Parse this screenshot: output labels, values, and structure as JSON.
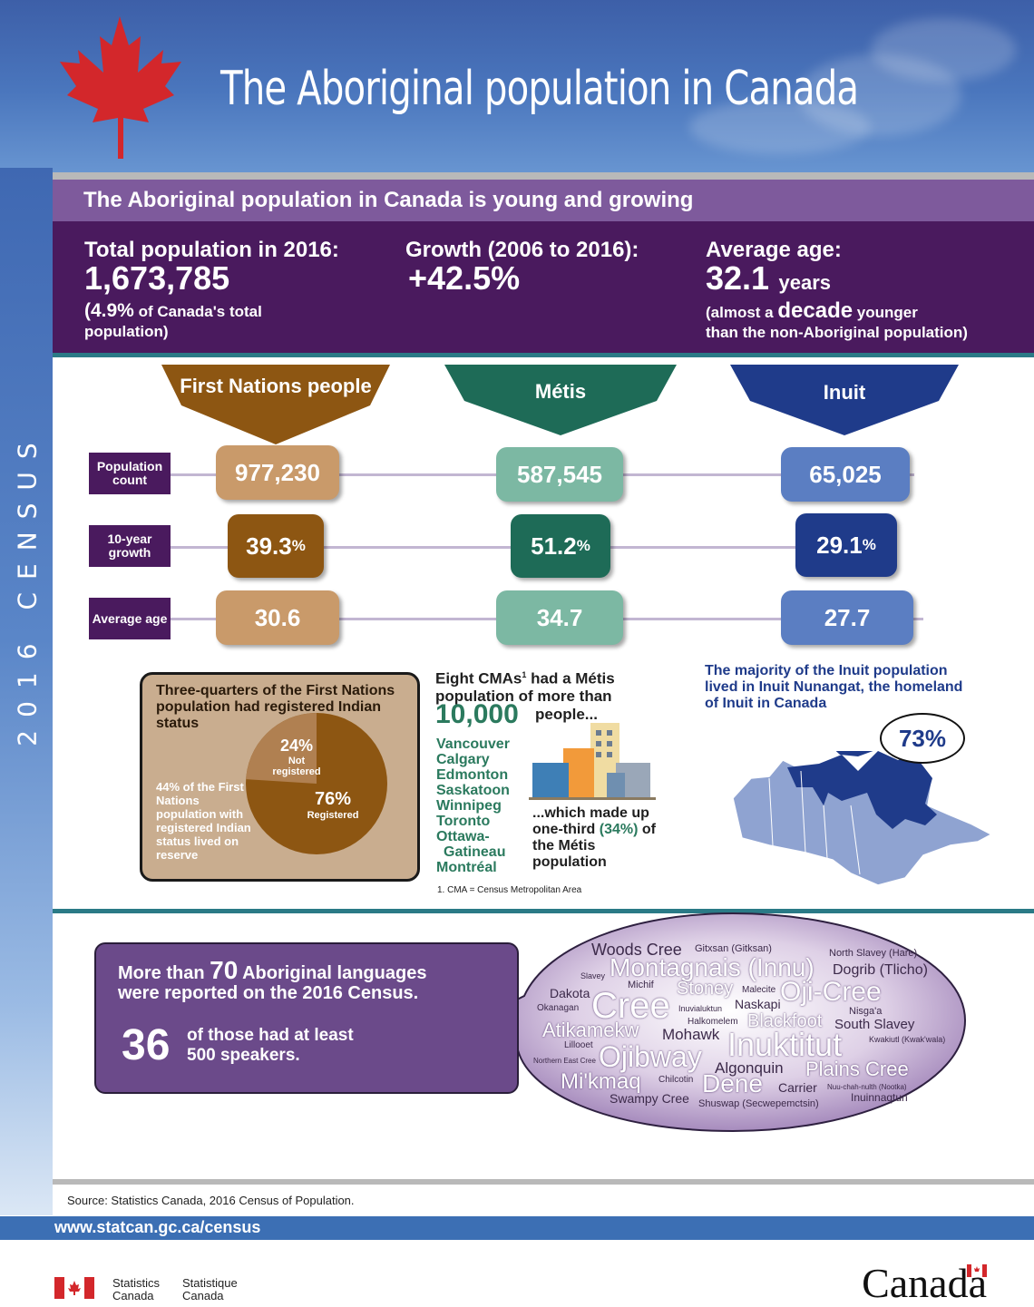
{
  "header": {
    "title": "The Aboriginal population in Canada",
    "side_label": "2016 CENSUS"
  },
  "intro": {
    "heading": "The Aboriginal population in Canada is young and growing",
    "total_label": "Total population in 2016:",
    "total_value": "1,673,785",
    "total_pct": "(4.9%",
    "total_pct_note": " of Canada's total",
    "total_pct_note2": "population)",
    "growth_label": "Growth (2006 to 2016):",
    "growth_value": "+42.5%",
    "age_label": "Average age:",
    "age_value": "32.1",
    "age_unit": "years",
    "age_note_a": "(almost a ",
    "age_note_b": "decade",
    "age_note_c": " younger",
    "age_note_d": "than the non-Aboriginal population)"
  },
  "groups": [
    {
      "name": "First Nations people",
      "color": "#8d5612",
      "population": "977,230",
      "growth": "39.3",
      "age": "30.6"
    },
    {
      "name": "Métis",
      "color": "#1e6b57",
      "population": "587,545",
      "growth": "51.2",
      "age": "34.7"
    },
    {
      "name": "Inuit",
      "color": "#1f3b8a",
      "population": "65,025",
      "growth": "29.1",
      "age": "27.7"
    }
  ],
  "row_labels": {
    "population": "Population count",
    "growth": "10-year growth",
    "age": "Average age",
    "pct": "%"
  },
  "first_nations_detail": {
    "heading": "Three-quarters of the First Nations population had registered Indian status",
    "note": "44% of the First Nations population with registered Indian status lived on reserve",
    "pie_not_pct": "24%",
    "pie_not_label": "Not registered",
    "pie_reg_pct": "76%",
    "pie_reg_label": "Registered",
    "pie_values": [
      24,
      76
    ]
  },
  "metis_detail": {
    "heading_a": "Eight CMAs",
    "footnote_mark": "1",
    "heading_b": " had a Métis population of more than",
    "big": "10,000",
    "big_suffix": "people...",
    "cities": [
      "Vancouver",
      "Calgary",
      "Edmonton",
      "Saskatoon",
      "Winnipeg",
      "Toronto",
      "Ottawa-",
      "Gatineau",
      "Montréal"
    ],
    "share_a": "...which made up one-third ",
    "share_b": "(34%)",
    "share_c": " of the Métis population",
    "footnote": "1. CMA = Census Metropolitan Area"
  },
  "inuit_detail": {
    "text": "The majority of the Inuit population lived in Inuit Nunangat, the homeland of Inuit in Canada",
    "pct": "73%"
  },
  "languages": {
    "line1_a": "More than ",
    "line1_b": "70",
    "line1_c": " Aboriginal languages",
    "line2": "were reported on the 2016 Census.",
    "count": "36",
    "count_text_1": "of those had at least",
    "count_text_2": "500 speakers.",
    "cloud": [
      "Woods Cree",
      "Gitxsan (Gitksan)",
      "North Slavey (Hare)",
      "Montagnais (Innu)",
      "Dogrib (Tlicho)",
      "Slavey",
      "Michif",
      "Stoney",
      "Malecite",
      "Dakota",
      "Oji-Cree",
      "Naskapi",
      "Cree",
      "Okanagan",
      "Inuvialuktun",
      "Nisga'a",
      "Halkomelem",
      "Blackfoot",
      "South Slavey",
      "Atikamekw",
      "Mohawk",
      "Inuktitut",
      "Kwakiutl (Kwak'wala)",
      "Lillooet",
      "Ojibway",
      "Northern East Cree",
      "Algonquin",
      "Plains Cree",
      "Mi'kmaq",
      "Chilcotin",
      "Dene",
      "Carrier",
      "Nuu-chah-nulth (Nootka)",
      "Swampy Cree",
      "Shuswap (Secwepemctsin)",
      "Inuinnaqtun"
    ]
  },
  "footer": {
    "source": "Source: Statistics Canada, 2016 Census of Population.",
    "url": "www.statcan.gc.ca/census",
    "org_en_1": "Statistics",
    "org_en_2": "Canada",
    "org_fr_1": "Statistique",
    "org_fr_2": "Canada",
    "wordmark": "Canada"
  }
}
